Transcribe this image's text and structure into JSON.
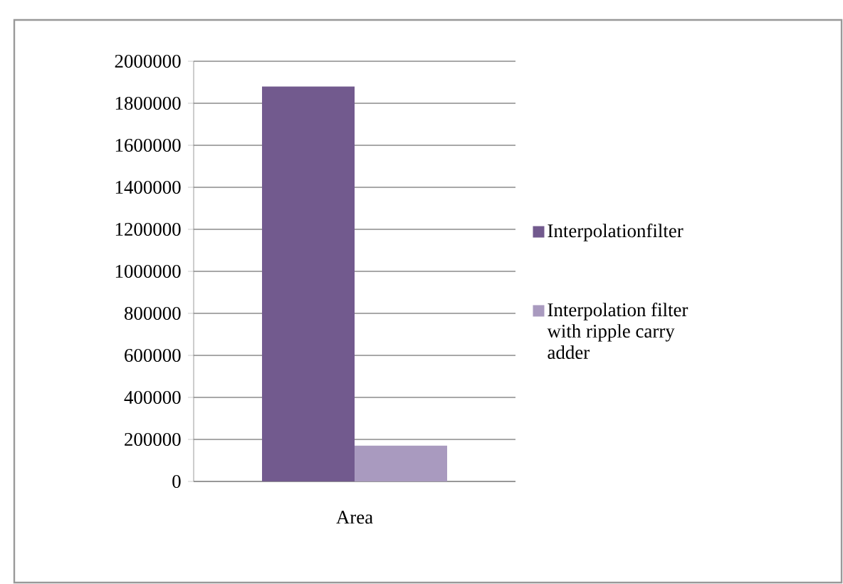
{
  "chart_data": {
    "type": "bar",
    "categories": [
      "Area"
    ],
    "series": [
      {
        "name": "Interpolationfilter",
        "color": "#725a8e",
        "values": [
          1880000
        ]
      },
      {
        "name": "Interpolation filter with ripple carry adder",
        "color": "#a99abf",
        "values": [
          170000
        ]
      }
    ],
    "ylim": [
      0,
      2000000
    ],
    "yticks": [
      0,
      200000,
      400000,
      600000,
      800000,
      1000000,
      1200000,
      1400000,
      1600000,
      1800000,
      2000000
    ],
    "grid": "y",
    "legend": "right"
  }
}
